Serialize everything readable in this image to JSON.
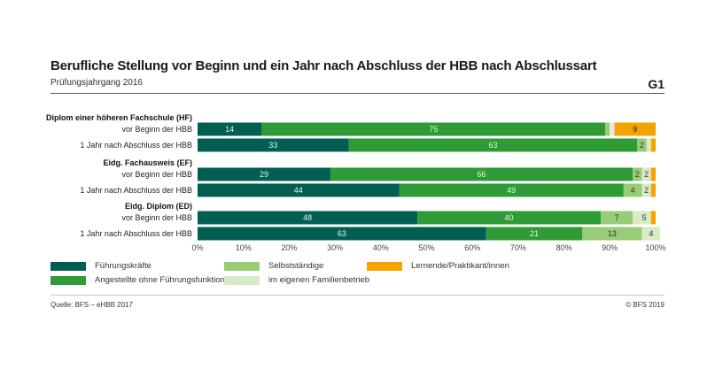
{
  "header": {
    "title": "Berufliche Stellung vor Beginn und ein Jahr nach Abschluss der HBB nach Abschlussart",
    "subtitle": "Prüfungsjahrgang 2016",
    "badge": "G1"
  },
  "footer": {
    "source": "Quelle: BFS – eHBB 2017",
    "copyright": "© BFS 2019"
  },
  "colors": {
    "fuehrung": "#005f52",
    "angestellte": "#2e9b37",
    "selbst": "#99cc77",
    "familie": "#d7ebc7",
    "lernende": "#f5a300",
    "track": "#e6e6e6"
  },
  "chart_data": {
    "type": "bar",
    "orientation": "horizontal",
    "stacked": true,
    "xlim": [
      0,
      100
    ],
    "x_ticks": [
      "0%",
      "10%",
      "20%",
      "30%",
      "40%",
      "50%",
      "60%",
      "70%",
      "80%",
      "90%",
      "100%"
    ],
    "grid": true,
    "legend_position": "bottom",
    "groups": [
      {
        "label": "Diplom einer höheren Fachschule (HF)",
        "rows": [
          {
            "label": "vor Beginn der HBB",
            "values": [
              14,
              75,
              1,
              0,
              9
            ],
            "labels": [
              "14",
              "75",
              "",
              "",
              "9"
            ]
          },
          {
            "label": "1 Jahr nach Abschluss der HBB",
            "values": [
              33,
              63,
              2,
              1,
              1
            ],
            "labels": [
              "33",
              "63",
              "2",
              "",
              ""
            ]
          }
        ]
      },
      {
        "label": "Eidg. Fachausweis (EF)",
        "rows": [
          {
            "label": "vor Beginn der HBB",
            "values": [
              29,
              66,
              2,
              2,
              1
            ],
            "labels": [
              "29",
              "66",
              "2",
              "2",
              ""
            ]
          },
          {
            "label": "1 Jahr nach Abschluss der HBB",
            "values": [
              44,
              49,
              4,
              2,
              1
            ],
            "labels": [
              "44",
              "49",
              "4",
              "2",
              ""
            ]
          }
        ]
      },
      {
        "label": "Eidg. Diplom (ED)",
        "rows": [
          {
            "label": "vor Beginn der HBB",
            "values": [
              48,
              40,
              7,
              5,
              1
            ],
            "labels": [
              "48",
              "40",
              "7",
              "5",
              ""
            ]
          },
          {
            "label": "1 Jahr nach Abschluss der HBB",
            "values": [
              63,
              21,
              13,
              4,
              0
            ],
            "labels": [
              "63",
              "21",
              "13",
              "4",
              ""
            ]
          }
        ]
      }
    ],
    "series": [
      {
        "name": "Führungskräfte",
        "color_key": "fuehrung"
      },
      {
        "name": "Angestellte ohne Führungsfunktion",
        "color_key": "angestellte"
      },
      {
        "name": "Selbstständige",
        "color_key": "selbst"
      },
      {
        "name": "im eigenen Familienbetrieb",
        "color_key": "familie"
      },
      {
        "name": "Lernende/Praktikant/innen",
        "color_key": "lernende"
      }
    ]
  }
}
